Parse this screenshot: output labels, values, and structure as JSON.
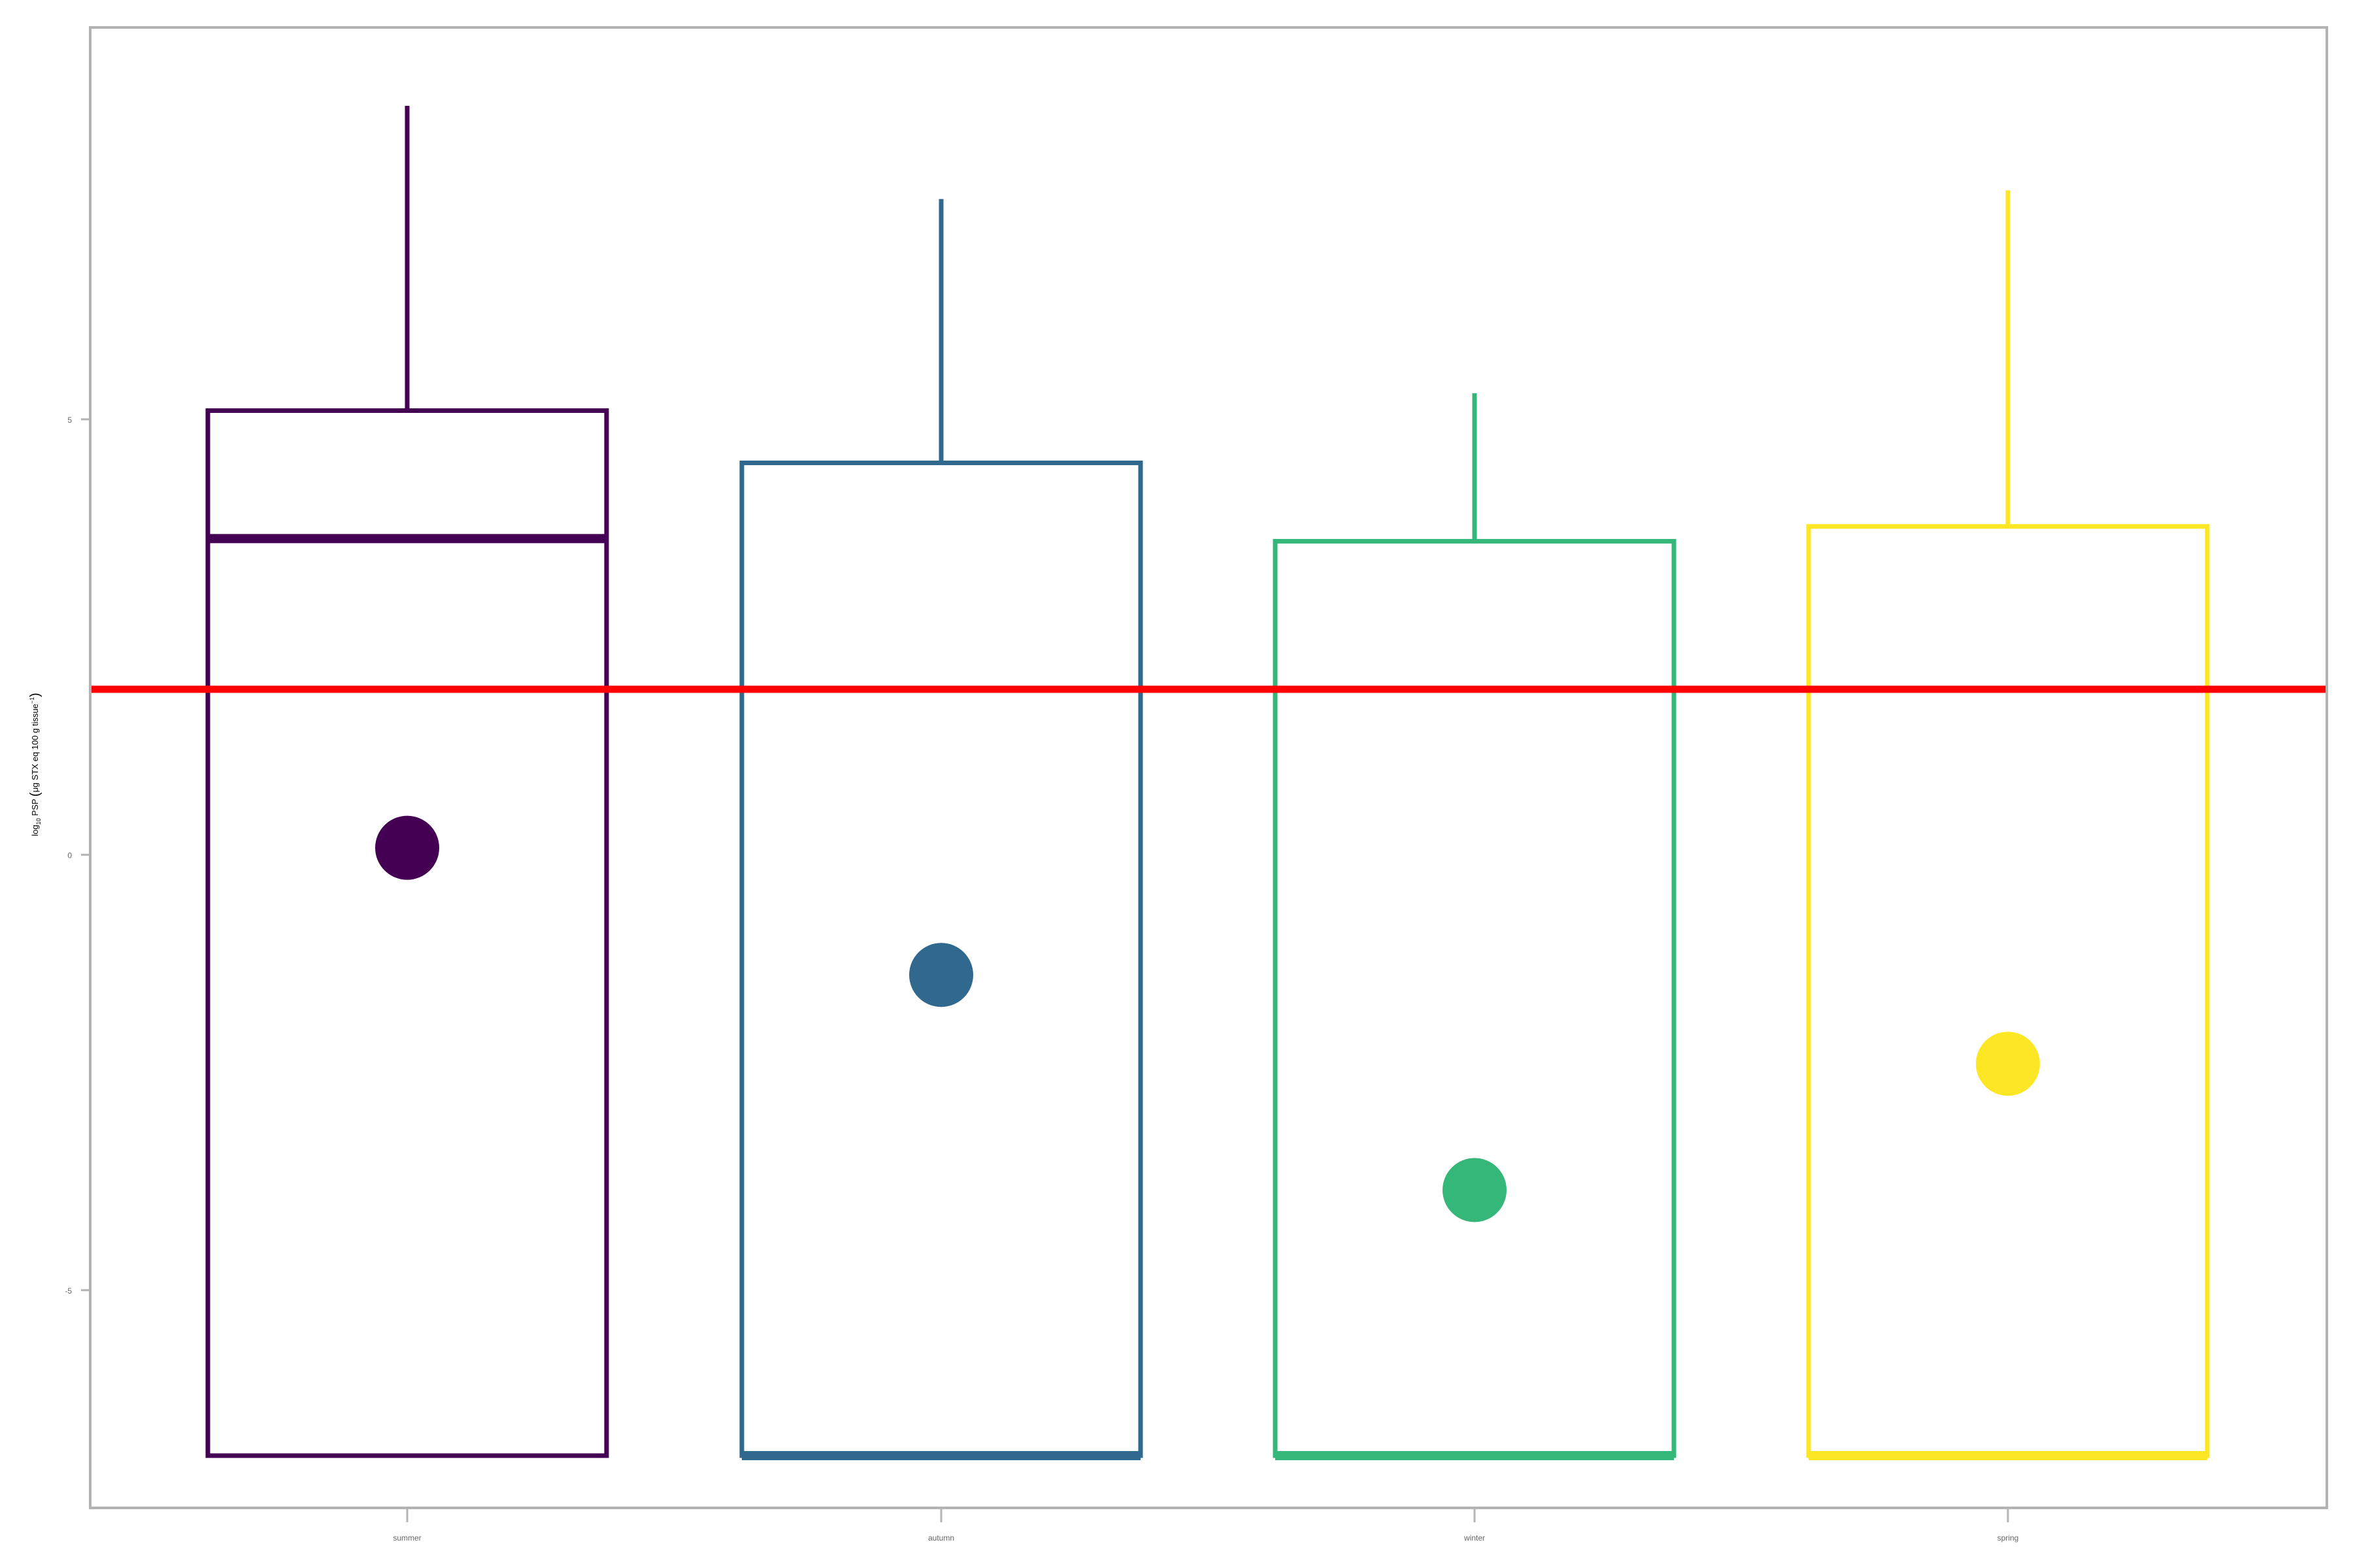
{
  "chart_data": {
    "type": "box",
    "ylabel": "log₁₀ PSP (μg STX eq 100 g tissue⁻¹)",
    "ylabel_parts": {
      "prefix": "log",
      "sub": "10",
      "middle": " PSP ",
      "paren_open": "(",
      "units": "μg STX eq 100 g tissue",
      "sup": "−1",
      "paren_close": ")"
    },
    "ylim": [
      -7.5,
      9.5
    ],
    "yticks": [
      5,
      0,
      -5
    ],
    "ytick_labels": [
      "5",
      "0",
      "-5"
    ],
    "grid": false,
    "categories": [
      "summer",
      "autumn",
      "winter",
      "spring"
    ],
    "series": [
      {
        "category": "summer",
        "color": "#440154",
        "whisker_low": -6.9,
        "q1": -6.9,
        "median": 3.63,
        "q3": 5.1,
        "whisker_high": 8.6,
        "mean": 0.08
      },
      {
        "category": "autumn",
        "color": "#31688E",
        "whisker_low": -6.9,
        "q1": -6.9,
        "median": -6.9,
        "q3": 4.5,
        "whisker_high": 7.53,
        "mean": -1.38
      },
      {
        "category": "winter",
        "color": "#35B779",
        "whisker_low": -6.9,
        "q1": -6.9,
        "median": -6.9,
        "q3": 3.6,
        "whisker_high": 5.3,
        "mean": -3.85
      },
      {
        "category": "spring",
        "color": "#FDE725",
        "whisker_low": -6.9,
        "q1": -6.9,
        "median": -6.9,
        "q3": 3.77,
        "whisker_high": 7.63,
        "mean": -2.4
      }
    ],
    "reference_line": {
      "y": 1.9,
      "color": "#FF0000"
    },
    "frame_color": "#B3B3B3"
  }
}
